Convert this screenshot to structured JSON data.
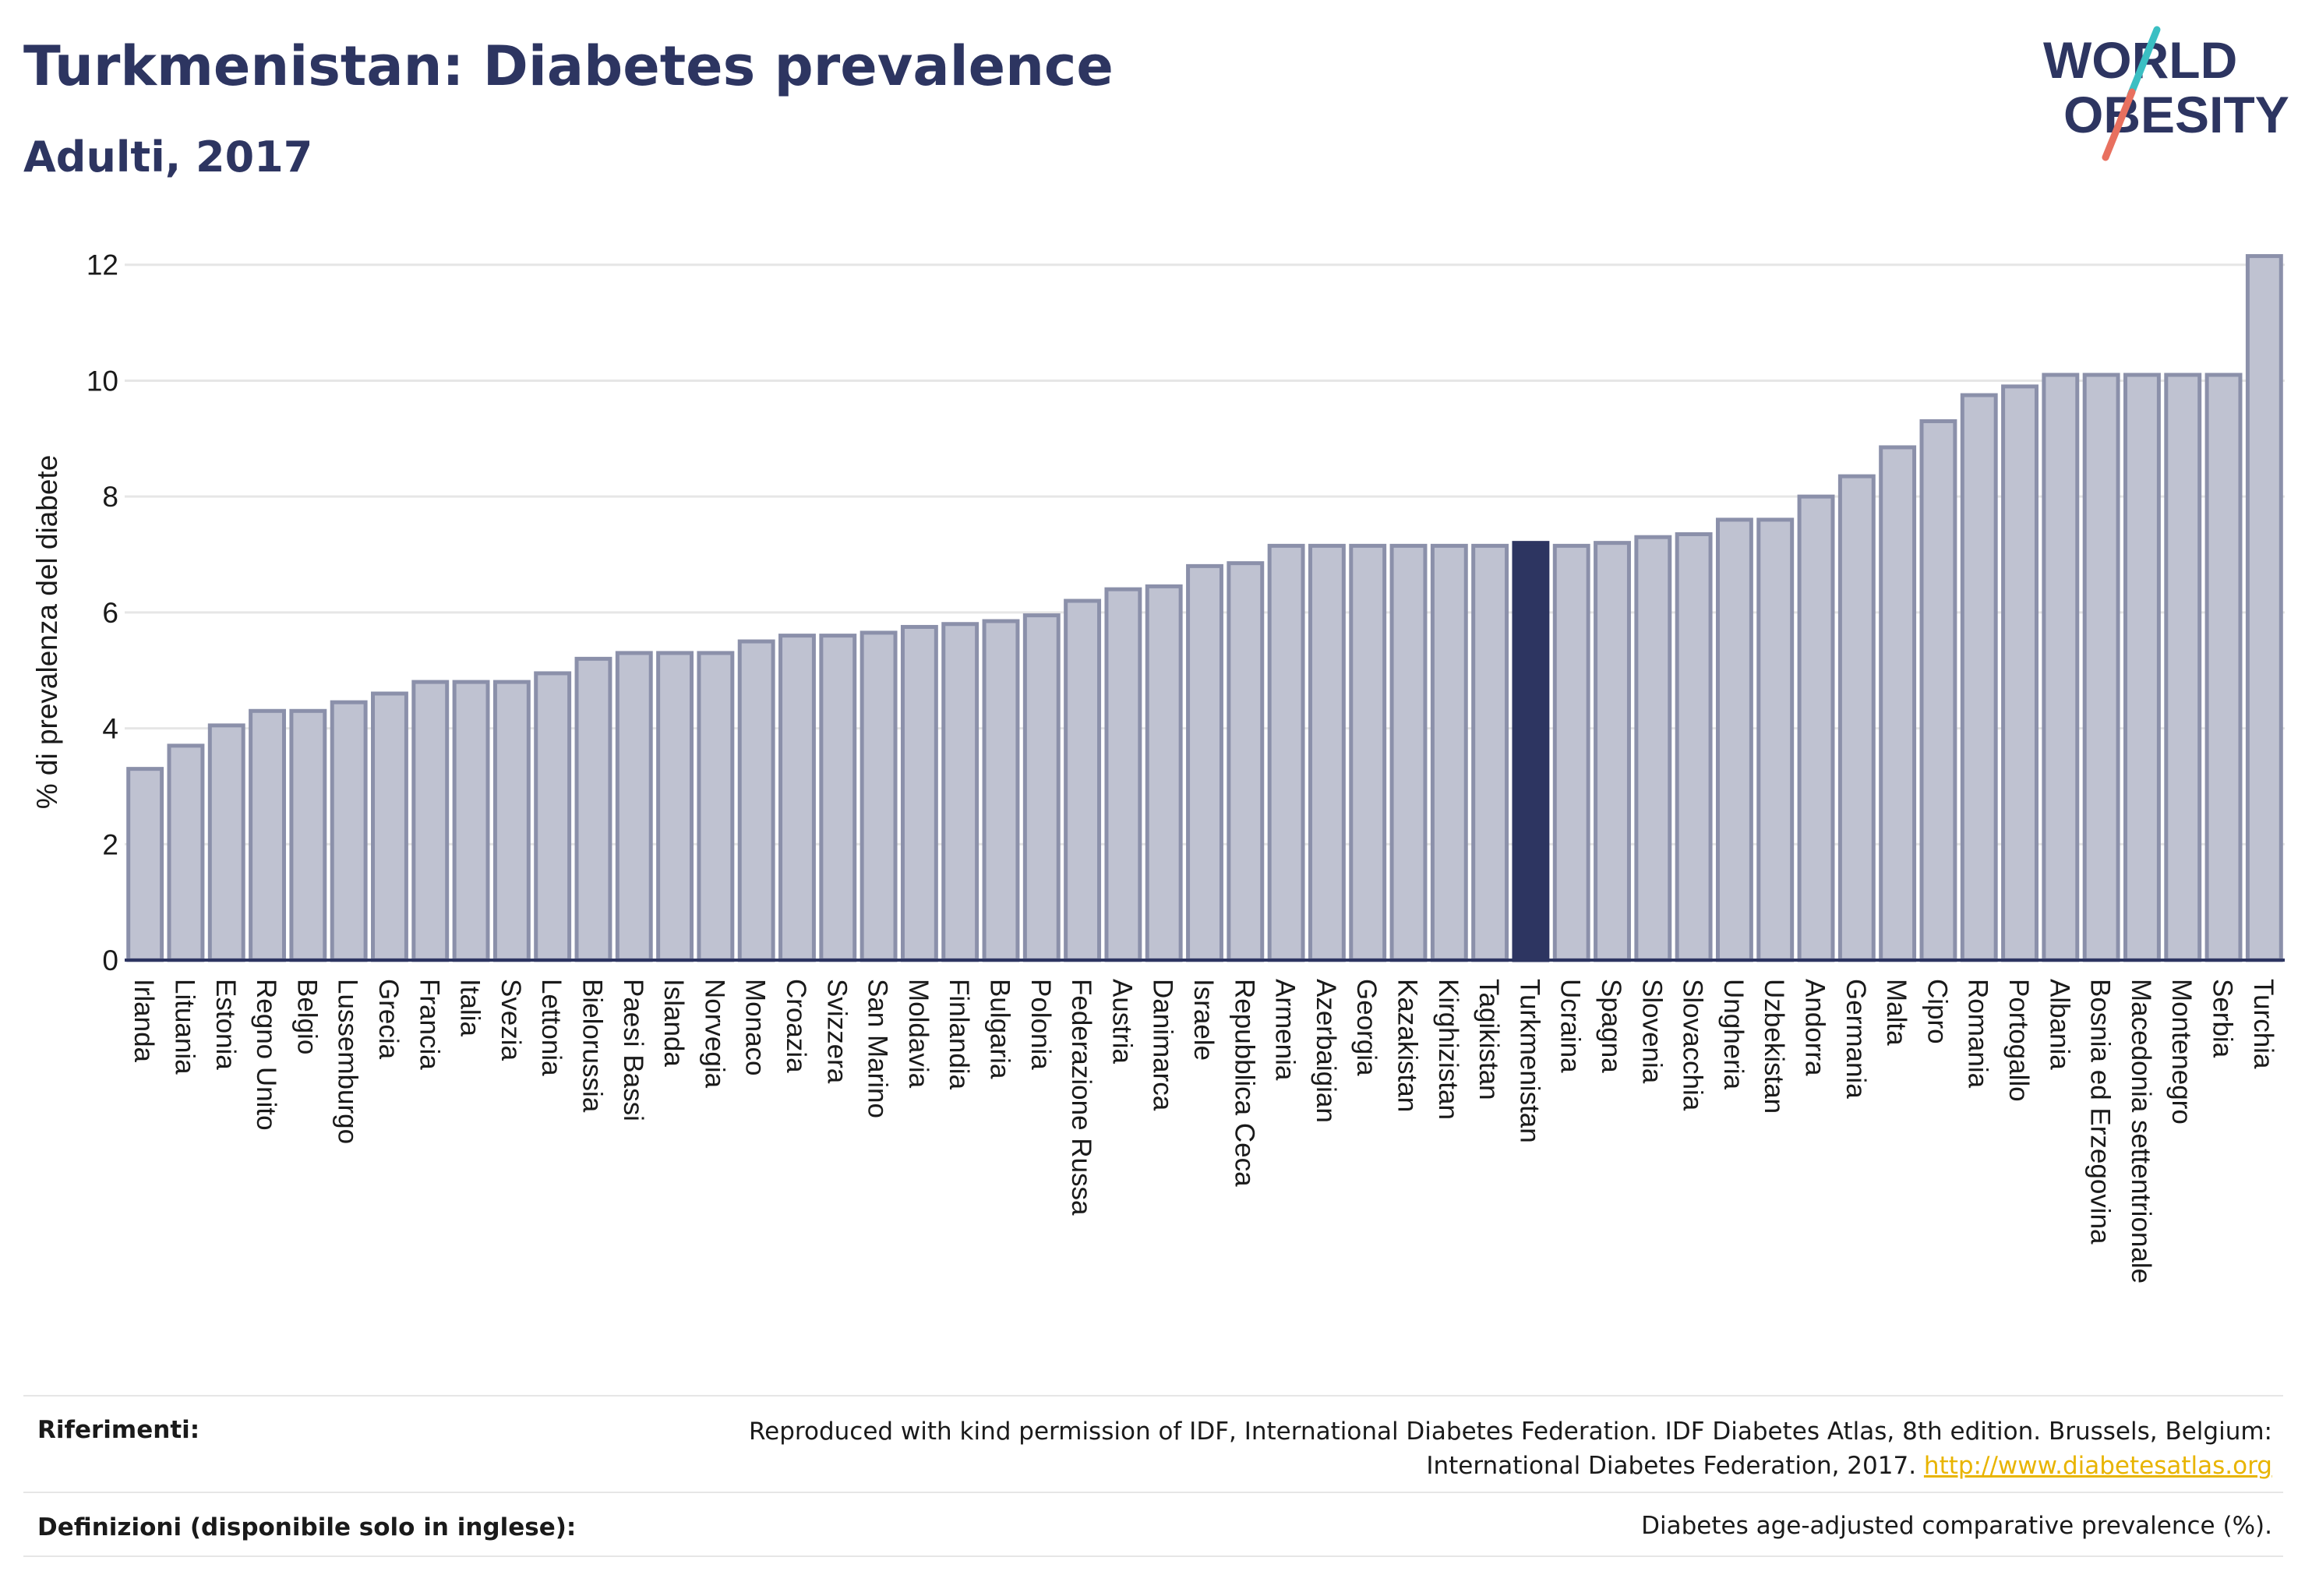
{
  "header": {
    "title": "Turkmenistan: Diabetes prevalence",
    "subtitle": "Adulti, 2017"
  },
  "logo": {
    "line1": "WORLD",
    "line2": "OBESITY",
    "colors": {
      "text": "#2d3561",
      "slash_top": "#3bbfc3",
      "slash_bottom": "#e8705f"
    }
  },
  "footer": {
    "references_label": "Riferimenti:",
    "references_text_line1": "Reproduced with kind permission of IDF, International Diabetes Federation. IDF Diabetes Atlas, 8th edition. Brussels, Belgium:",
    "references_text_line2": "International Diabetes Federation, 2017.",
    "references_link": "http://www.diabetesatlas.org",
    "definitions_label": "Definizioni (disponibile solo in inglese):",
    "definitions_text": "Diabetes age-adjusted comparative prevalence (%)."
  },
  "colors": {
    "bar": "#bfc2d1",
    "bar_stroke": "#8b90aa",
    "highlight": "#2d3561",
    "grid": "#e6e6e6"
  },
  "chart_data": {
    "type": "bar",
    "title": "Turkmenistan: Diabetes prevalence",
    "subtitle": "Adulti, 2017",
    "xlabel": "",
    "ylabel": "% di prevalenza del diabete",
    "ylim": [
      0,
      12.4
    ],
    "yticks": [
      0,
      2,
      4,
      6,
      8,
      10,
      12
    ],
    "grid": true,
    "highlight": "Turkmenistan",
    "categories": [
      "Irlanda",
      "Lituania",
      "Estonia",
      "Regno Unito",
      "Belgio",
      "Lussemburgo",
      "Grecia",
      "Francia",
      "Italia",
      "Svezia",
      "Lettonia",
      "Bielorussia",
      "Paesi Bassi",
      "Islanda",
      "Norvegia",
      "Monaco",
      "Croazia",
      "Svizzera",
      "San Marino",
      "Moldavia",
      "Finlandia",
      "Bulgaria",
      "Polonia",
      "Federazione Russa",
      "Austria",
      "Danimarca",
      "Israele",
      "Repubblica Ceca",
      "Armenia",
      "Azerbaigian",
      "Georgia",
      "Kazakistan",
      "Kirghizistan",
      "Tagikistan",
      "Turkmenistan",
      "Ucraina",
      "Spagna",
      "Slovenia",
      "Slovacchia",
      "Ungheria",
      "Uzbekistan",
      "Andorra",
      "Germania",
      "Malta",
      "Cipro",
      "Romania",
      "Portogallo",
      "Albania",
      "Bosnia ed Erzegovina",
      "Macedonia settentrionale",
      "Montenegro",
      "Serbia",
      "Turchia"
    ],
    "values": [
      3.3,
      3.7,
      4.05,
      4.3,
      4.3,
      4.45,
      4.6,
      4.8,
      4.8,
      4.8,
      4.95,
      5.2,
      5.3,
      5.3,
      5.3,
      5.5,
      5.6,
      5.6,
      5.65,
      5.75,
      5.8,
      5.85,
      5.95,
      6.2,
      6.4,
      6.45,
      6.8,
      6.85,
      7.15,
      7.15,
      7.15,
      7.15,
      7.15,
      7.15,
      7.2,
      7.15,
      7.2,
      7.3,
      7.35,
      7.6,
      7.6,
      8.0,
      8.35,
      8.85,
      9.3,
      9.75,
      9.9,
      10.1,
      10.1,
      10.1,
      10.1,
      10.1,
      12.15
    ]
  }
}
